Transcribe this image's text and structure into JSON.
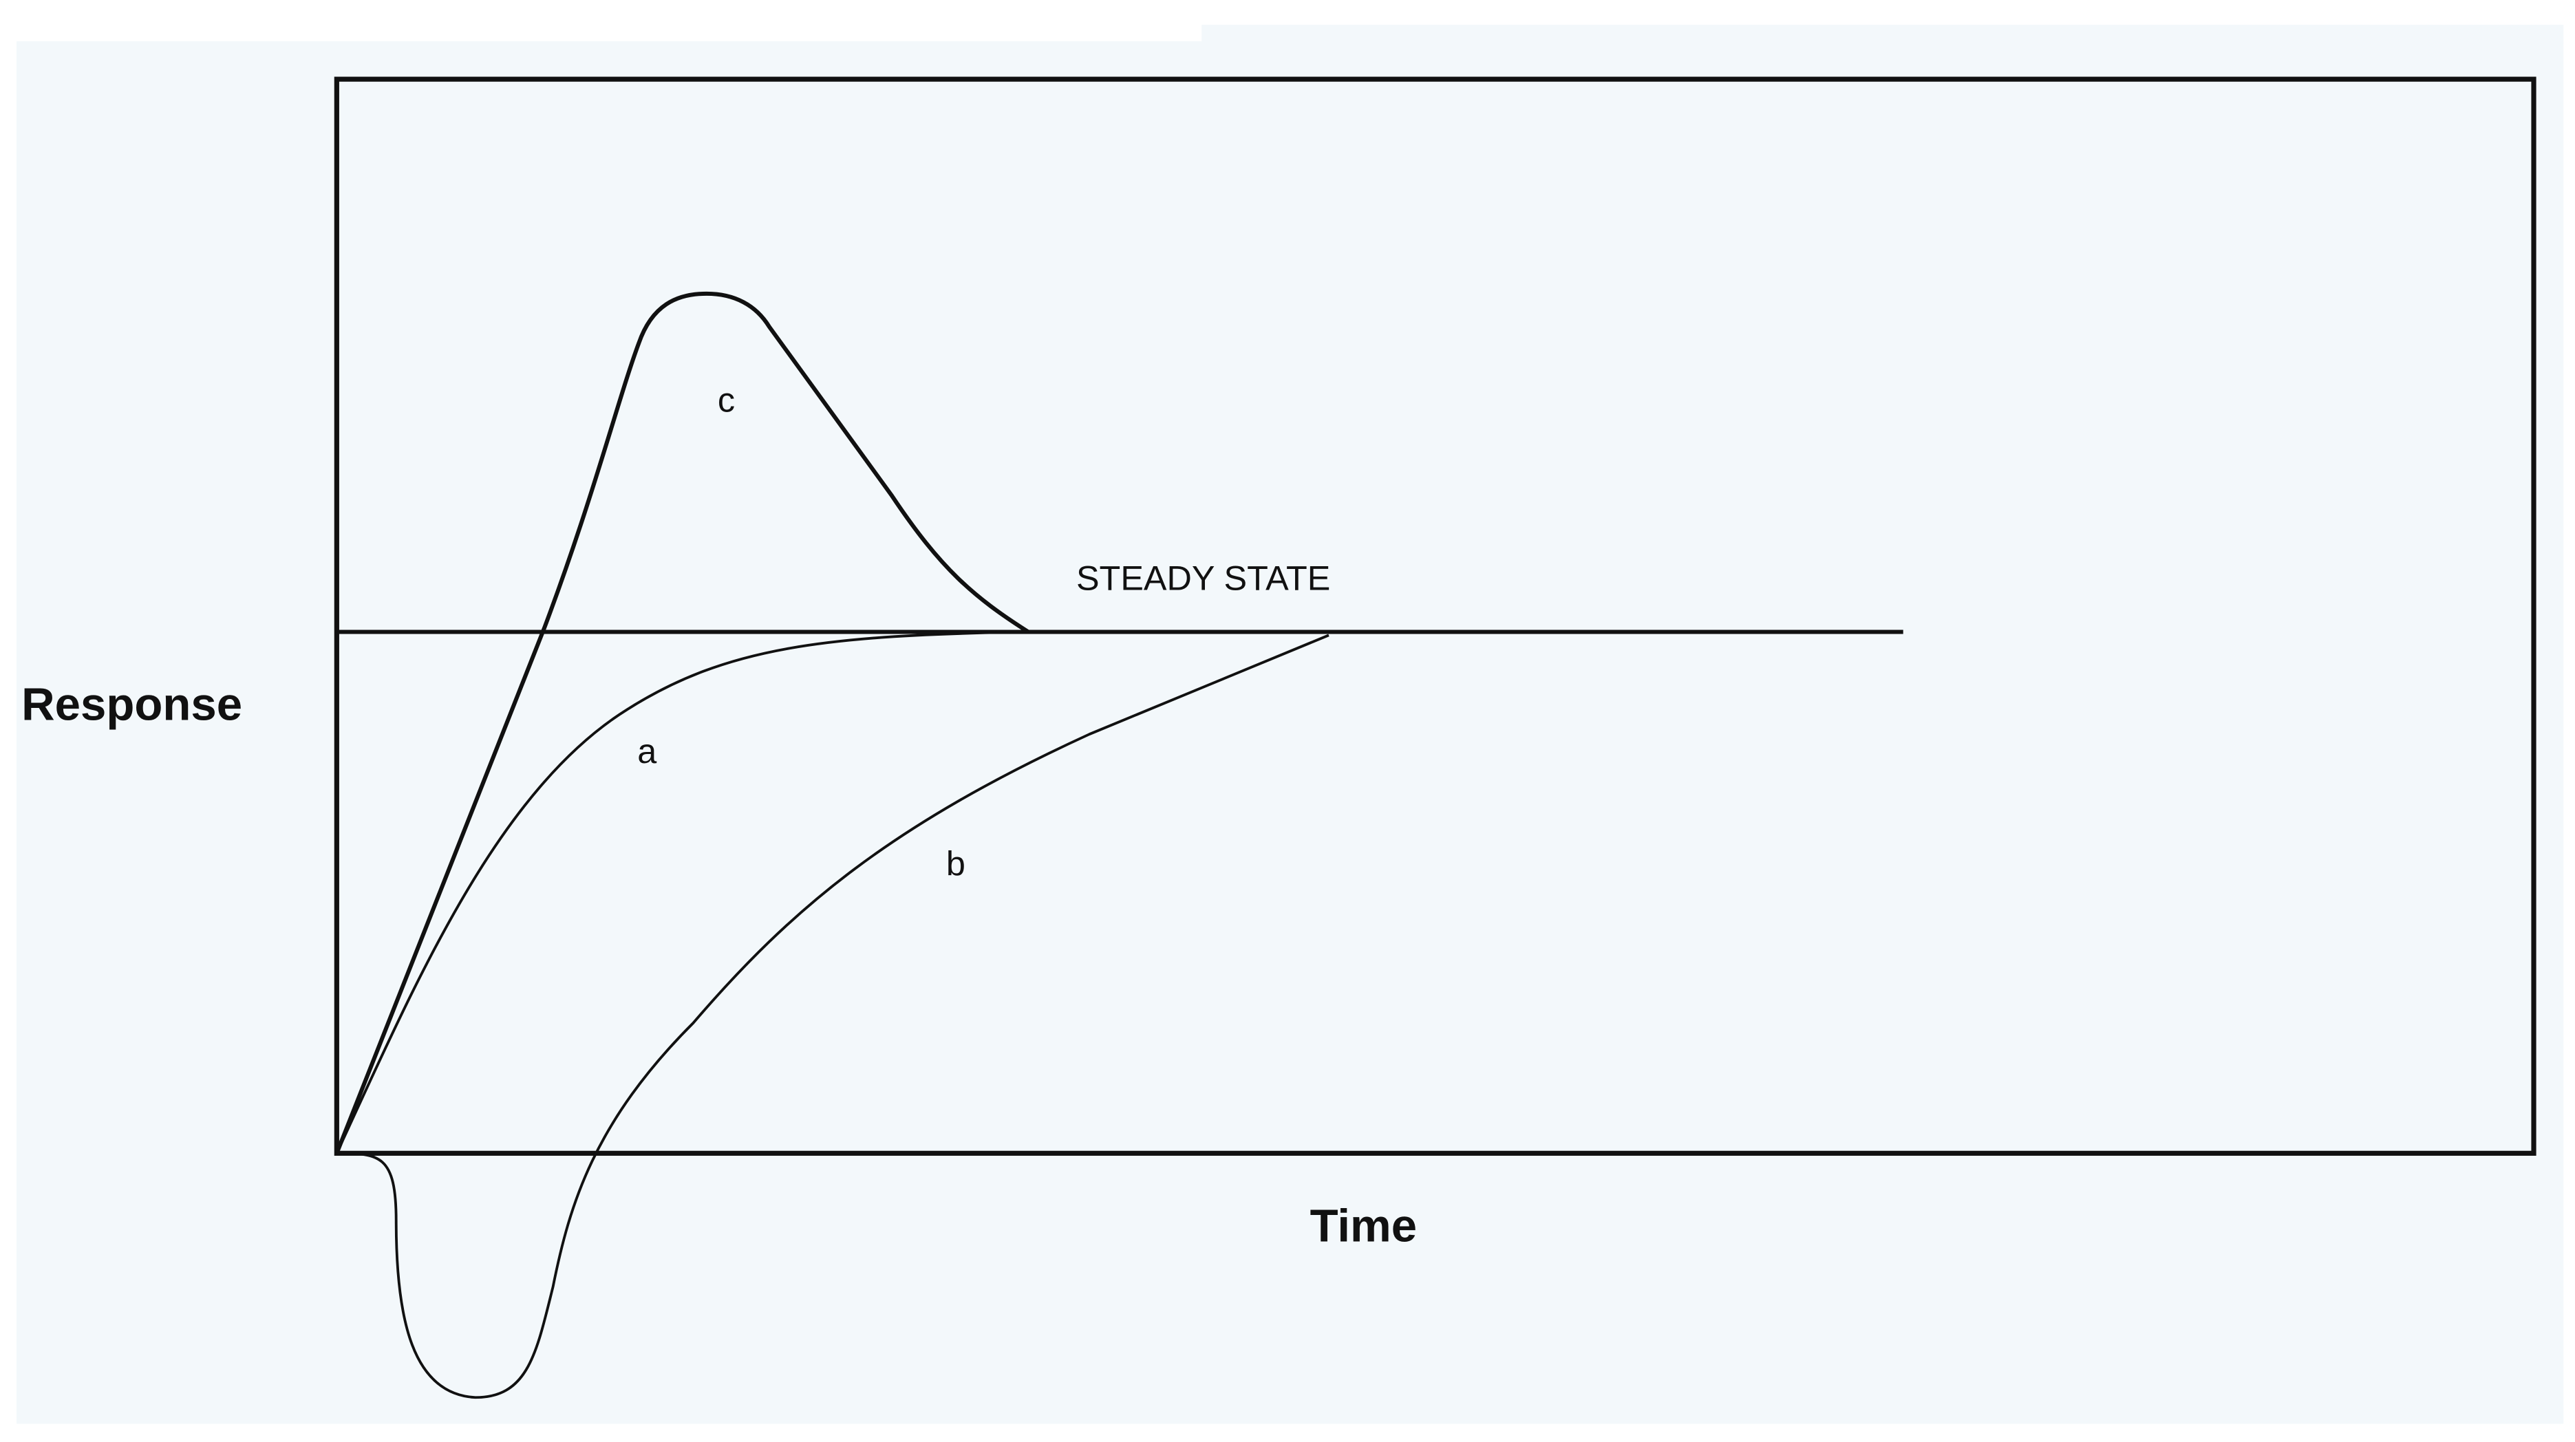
{
  "axes": {
    "y_label": "Response",
    "x_label": "Time"
  },
  "annotations": {
    "steady_state": "STEADY STATE",
    "curve_a": "a",
    "curve_b": "b",
    "curve_c": "c"
  }
}
